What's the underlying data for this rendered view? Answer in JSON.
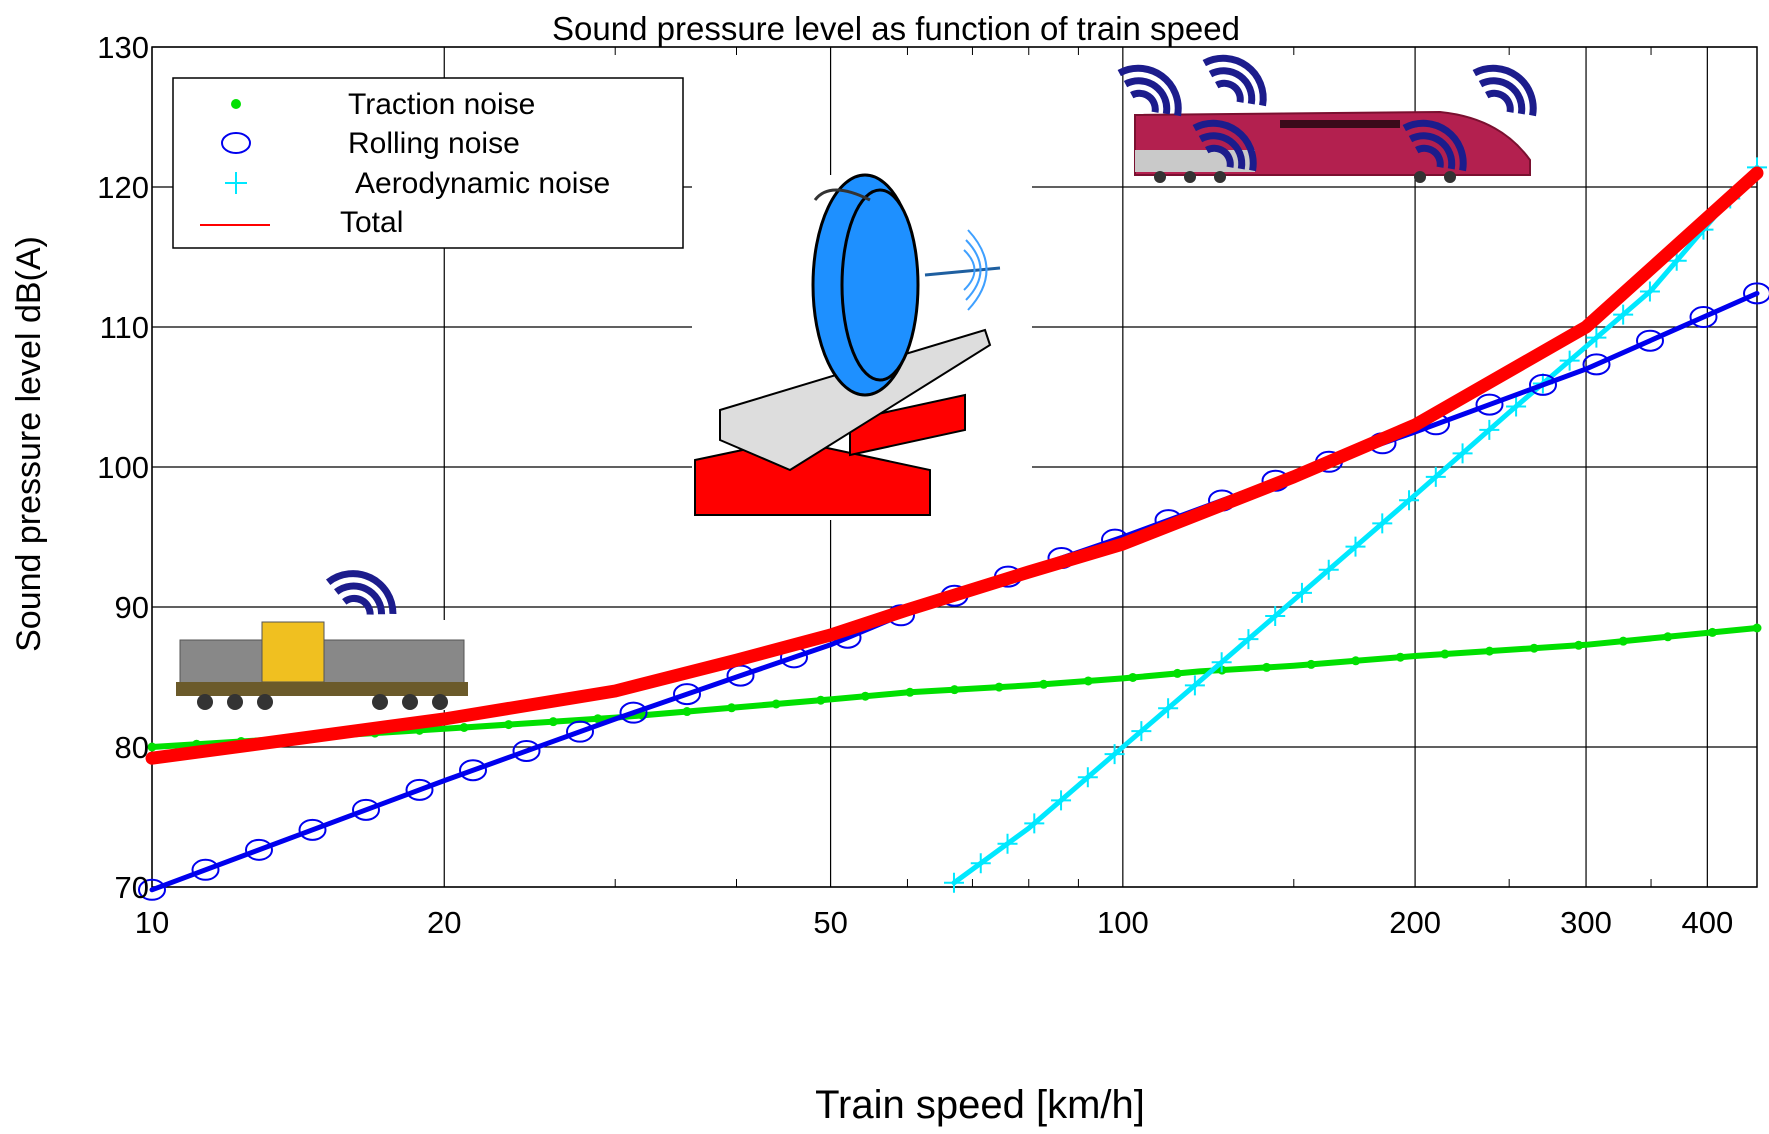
{
  "chart_data": {
    "type": "line",
    "title": "Sound pressure level as function of train speed",
    "xlabel": "Train speed [km/h]",
    "ylabel": "Sound pressure level dB(A)",
    "x_scale": "log",
    "xlim": [
      10,
      450
    ],
    "ylim": [
      70,
      130
    ],
    "x_ticks": [
      10,
      20,
      50,
      100,
      200,
      300,
      400
    ],
    "x_tick_labels": [
      "10",
      "20",
      "50",
      "100",
      "200",
      "300",
      "400"
    ],
    "y_ticks": [
      70,
      80,
      90,
      100,
      110,
      120,
      130
    ],
    "y_tick_labels": [
      "70",
      "80",
      "90",
      "100",
      "110",
      "120",
      "130"
    ],
    "grid": true,
    "legend_position": "top-left",
    "series": [
      {
        "name": "Traction noise",
        "color": "#00e000",
        "marker": "dot",
        "x": [
          10,
          20,
          30,
          50,
          60,
          80,
          100,
          120,
          150,
          200,
          300,
          450
        ],
        "y": [
          80.0,
          81.3,
          82.1,
          83.4,
          83.9,
          84.4,
          84.9,
          85.4,
          85.8,
          86.5,
          87.3,
          88.5
        ]
      },
      {
        "name": "Rolling noise",
        "color": "#0000ee",
        "marker": "circle",
        "x": [
          10,
          20,
          30,
          40,
          50,
          60,
          80,
          100,
          150,
          200,
          300,
          450
        ],
        "y": [
          69.8,
          77.6,
          82.0,
          85.0,
          87.3,
          89.6,
          92.7,
          95.0,
          99.5,
          102.5,
          107.0,
          112.4
        ]
      },
      {
        "name": "Aerodynamic noise",
        "color": "#00e8ff",
        "marker": "plus",
        "x": [
          67,
          80,
          100,
          120,
          150,
          200,
          250,
          300,
          350,
          450
        ],
        "y": [
          70.3,
          74.2,
          80.0,
          84.7,
          90.5,
          98.0,
          103.9,
          108.6,
          112.6,
          121.4
        ]
      },
      {
        "name": "Total",
        "color": "#ff0000",
        "marker": "none",
        "x": [
          10,
          20,
          30,
          40,
          50,
          60,
          80,
          100,
          150,
          200,
          300,
          450
        ],
        "y": [
          79.2,
          82.0,
          84.0,
          86.2,
          88.0,
          89.8,
          92.5,
          94.5,
          99.3,
          103.0,
          110.0,
          121.0
        ]
      }
    ]
  },
  "illustrations": [
    {
      "name": "locomotive",
      "icon": "diesel-locomotive-icon",
      "color": "#888888"
    },
    {
      "name": "wheel-rail",
      "icon": "wheel-on-rail-icon",
      "color": "#1e90ff"
    },
    {
      "name": "high-speed-train",
      "icon": "high-speed-train-icon",
      "color": "#b3204f"
    }
  ]
}
